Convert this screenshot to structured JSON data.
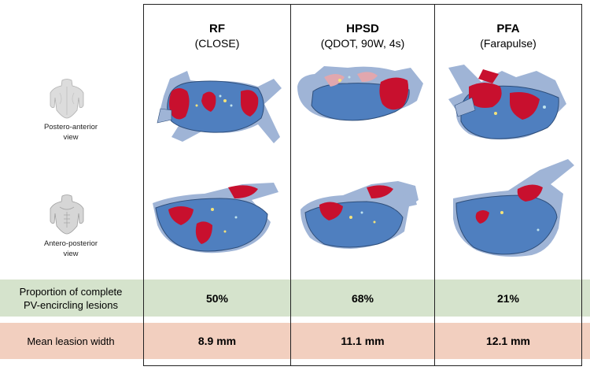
{
  "columns": [
    {
      "title": "RF",
      "subtitle": "(CLOSE)"
    },
    {
      "title": "HPSD",
      "subtitle": "(QDOT, 90W, 4s)"
    },
    {
      "title": "PFA",
      "subtitle": "(Farapulse)"
    }
  ],
  "views": [
    {
      "label_line1": "Postero-anterior",
      "label_line2": "view"
    },
    {
      "label_line1": "Antero-posterior",
      "label_line2": "view"
    }
  ],
  "metrics": [
    {
      "label_line1": "Proportion of complete",
      "label_line2": "PV-encircling lesions",
      "values": [
        "50%",
        "68%",
        "21%"
      ]
    },
    {
      "label_line1": "Mean leasion width",
      "label_line2": "",
      "values": [
        "8.9 mm",
        "11.1 mm",
        "12.1 mm"
      ]
    }
  ],
  "colors": {
    "heart_blue": "#4f7fbf",
    "vein_blue": "#9fb4d6",
    "lesion_red": "#c8102e",
    "metric1_band": "#d5e3cc",
    "metric2_band": "#f2cfbf"
  }
}
